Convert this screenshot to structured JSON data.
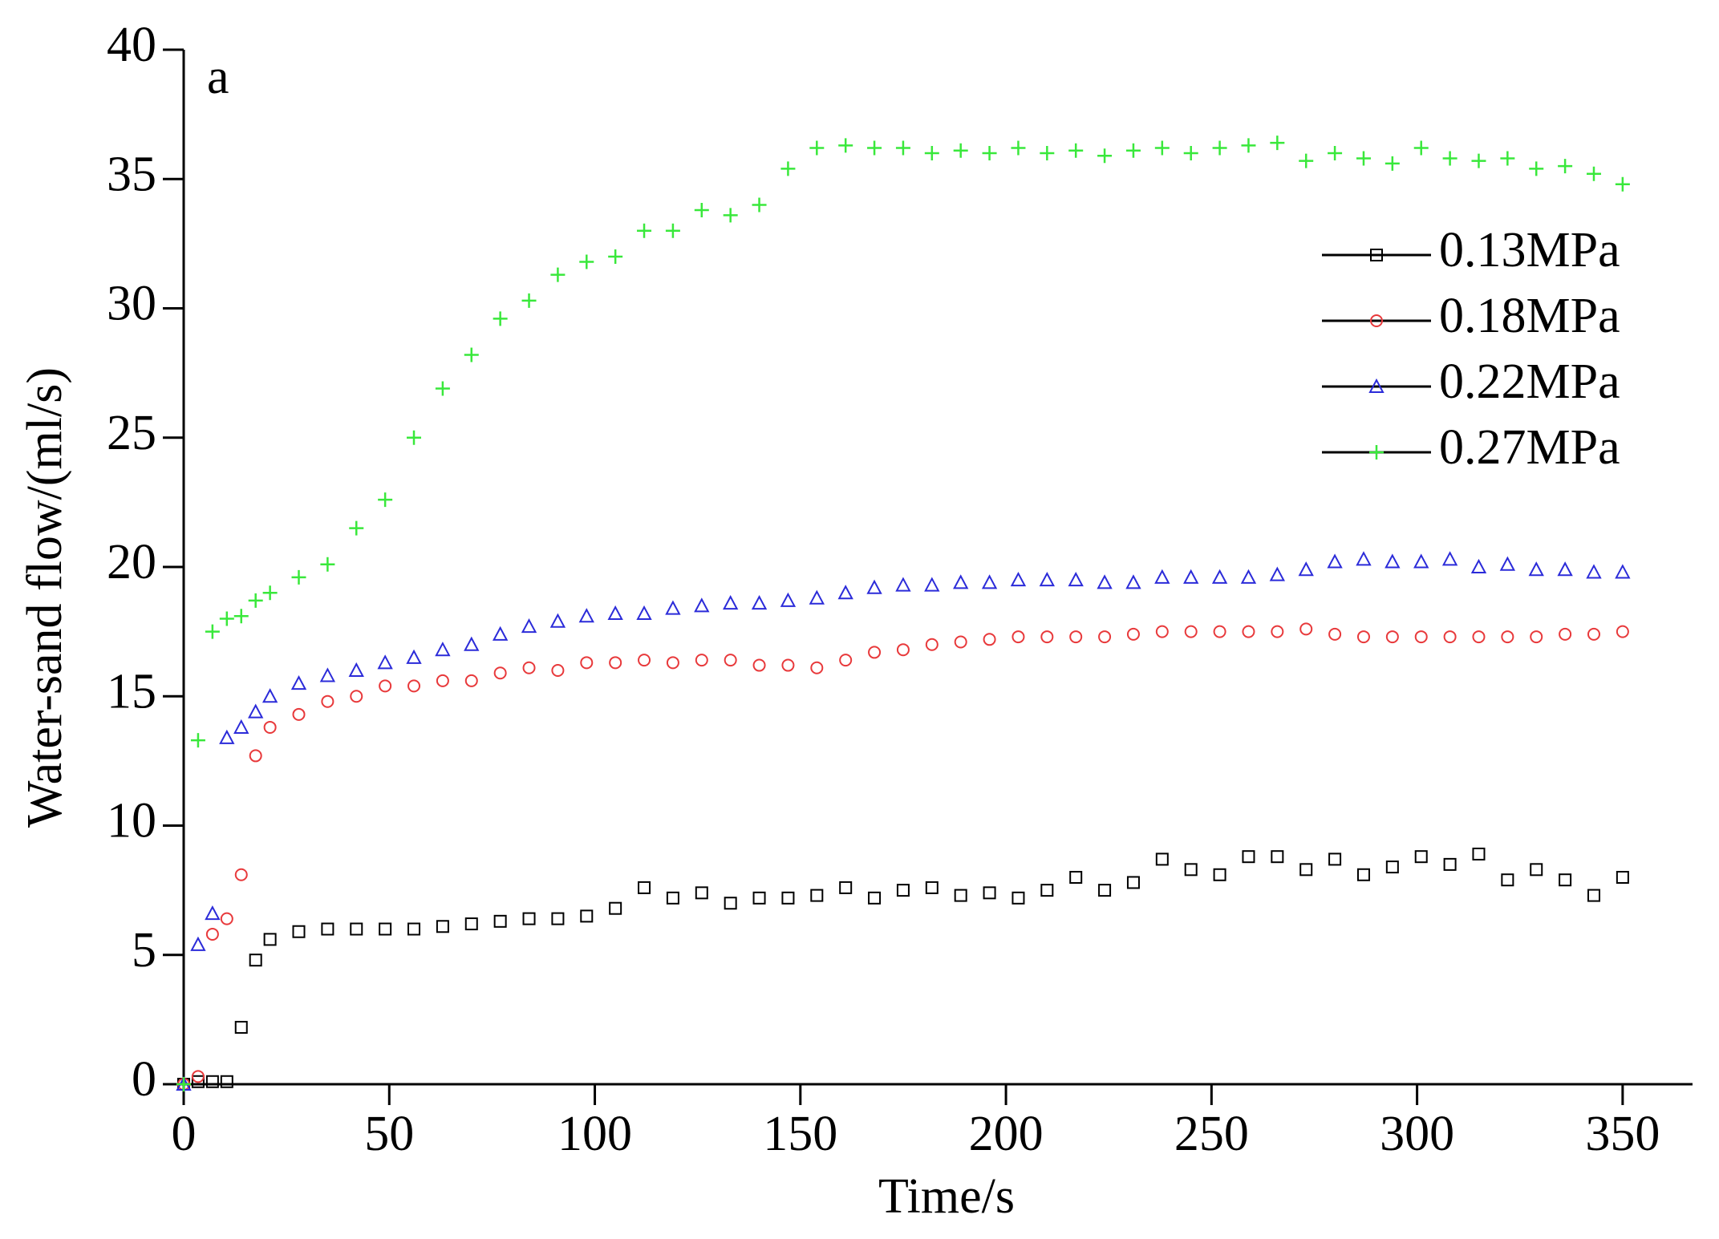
{
  "chart_data": {
    "type": "scatter",
    "panel_label": "a",
    "x_label": "Time/s",
    "y_label": "Water-sand flow/(ml/s)",
    "xlim": [
      0,
      367
    ],
    "xticks": [
      0,
      50,
      100,
      150,
      200,
      250,
      300,
      350
    ],
    "ylim": [
      0,
      40
    ],
    "yticks": [
      0,
      5,
      10,
      15,
      20,
      25,
      30,
      35,
      40
    ],
    "legend": "upper right",
    "x": [
      0,
      3.5,
      7,
      10.5,
      14,
      17.5,
      21,
      28,
      35,
      42,
      49,
      56,
      63,
      70,
      77,
      84,
      91,
      98,
      105,
      112,
      119,
      126,
      133,
      140,
      147,
      154,
      161,
      168,
      175,
      182,
      189,
      196,
      203,
      210,
      217,
      224,
      231,
      238,
      245,
      252,
      259,
      266,
      273,
      280,
      287,
      294,
      301,
      308,
      315,
      322,
      329,
      336,
      343,
      350
    ],
    "series": [
      {
        "name": "0.13MPa",
        "color": "#000000",
        "marker": "square",
        "values": [
          0,
          0.1,
          0.1,
          0.1,
          2.2,
          4.8,
          5.6,
          5.9,
          6.0,
          6.0,
          6.0,
          6.0,
          6.1,
          6.2,
          6.3,
          6.4,
          6.4,
          6.5,
          6.8,
          7.6,
          7.2,
          7.4,
          7.0,
          7.2,
          7.2,
          7.3,
          7.6,
          7.2,
          7.5,
          7.6,
          7.3,
          7.4,
          7.2,
          7.5,
          8.0,
          7.5,
          7.8,
          8.7,
          8.3,
          8.1,
          8.8,
          8.8,
          8.3,
          8.7,
          8.1,
          8.4,
          8.8,
          8.5,
          8.9,
          7.9,
          8.3,
          7.9,
          7.3,
          8.0
        ]
      },
      {
        "name": "0.18MPa",
        "color": "#e8393b",
        "marker": "circle",
        "values": [
          0,
          0.3,
          5.8,
          6.4,
          8.1,
          12.7,
          13.8,
          14.3,
          14.8,
          15.0,
          15.4,
          15.4,
          15.6,
          15.6,
          15.9,
          16.1,
          16.0,
          16.3,
          16.3,
          16.4,
          16.3,
          16.4,
          16.4,
          16.2,
          16.2,
          16.1,
          16.4,
          16.7,
          16.8,
          17.0,
          17.1,
          17.2,
          17.3,
          17.3,
          17.3,
          17.3,
          17.4,
          17.5,
          17.5,
          17.5,
          17.5,
          17.5,
          17.6,
          17.4,
          17.3,
          17.3,
          17.3,
          17.3,
          17.3,
          17.3,
          17.3,
          17.4,
          17.4,
          17.5
        ]
      },
      {
        "name": "0.22MPa",
        "color": "#2b2bd9",
        "marker": "triangle",
        "values": [
          0,
          5.4,
          6.6,
          13.4,
          13.8,
          14.4,
          15.0,
          15.5,
          15.8,
          16.0,
          16.3,
          16.5,
          16.8,
          17.0,
          17.4,
          17.7,
          17.9,
          18.1,
          18.2,
          18.2,
          18.4,
          18.5,
          18.6,
          18.6,
          18.7,
          18.8,
          19.0,
          19.2,
          19.3,
          19.3,
          19.4,
          19.4,
          19.5,
          19.5,
          19.5,
          19.4,
          19.4,
          19.6,
          19.6,
          19.6,
          19.6,
          19.7,
          19.9,
          20.2,
          20.3,
          20.2,
          20.2,
          20.3,
          20.0,
          20.1,
          19.9,
          19.9,
          19.8,
          19.8
        ]
      },
      {
        "name": "0.27MPa",
        "color": "#39e83b",
        "marker": "plus",
        "values": [
          0,
          13.3,
          17.5,
          18.0,
          18.1,
          18.7,
          19.0,
          19.6,
          20.1,
          21.5,
          22.6,
          25.0,
          26.9,
          28.2,
          29.6,
          30.3,
          31.3,
          31.8,
          32.0,
          33.0,
          33.0,
          33.8,
          33.6,
          34.0,
          35.4,
          36.2,
          36.3,
          36.2,
          36.2,
          36.0,
          36.1,
          36.0,
          36.2,
          36.0,
          36.1,
          35.9,
          36.1,
          36.2,
          36.0,
          36.2,
          36.3,
          36.4,
          35.7,
          36.0,
          35.8,
          35.6,
          36.2,
          35.8,
          35.7,
          35.8,
          35.4,
          35.5,
          35.2,
          34.8
        ]
      }
    ]
  }
}
